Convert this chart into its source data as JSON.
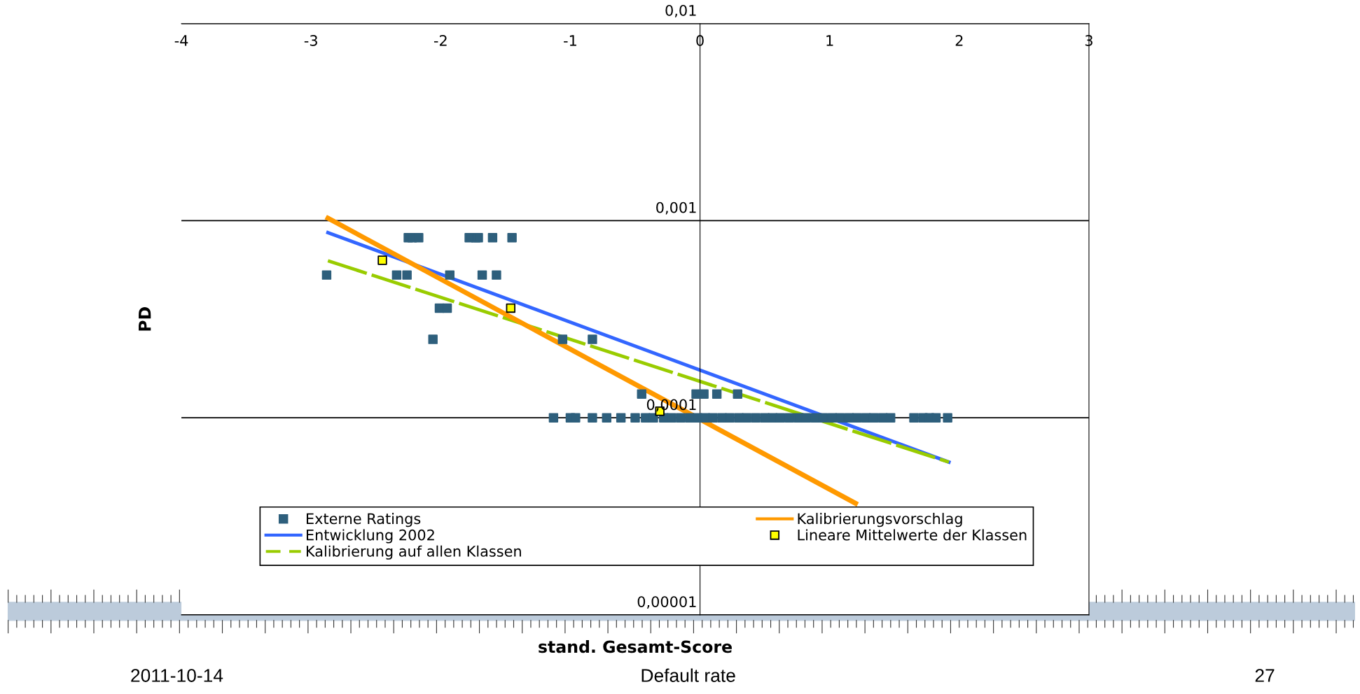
{
  "chart_data": {
    "type": "scatter",
    "xlabel": "stand. Gesamt-Score",
    "ylabel": "PD",
    "log": "y",
    "xlim": [
      -4,
      3
    ],
    "ylim": [
      1e-05,
      0.01
    ],
    "xticks": [
      -4,
      -3,
      -2,
      -1,
      0,
      1,
      2,
      3
    ],
    "yticks": [
      {
        "value": 1e-05,
        "label": "0,00001"
      },
      {
        "value": 0.0001,
        "label": "0,0001"
      },
      {
        "value": 0.001,
        "label": "0,001"
      },
      {
        "value": 0.01,
        "label": "0,01"
      }
    ],
    "grid": "y",
    "legend": "bottom",
    "series": [
      {
        "name": "Externe Ratings",
        "marker": "square",
        "color": "#2e5f7c",
        "x": [
          -2.25,
          -2.22,
          -2.17,
          -1.78,
          -1.73,
          -1.71,
          -1.6,
          -1.45,
          -2.88,
          -2.34,
          -2.26,
          -1.93,
          -1.68,
          -1.57,
          -2.01,
          -1.95,
          -2.06,
          -1.06,
          -0.83,
          -0.45,
          -0.03,
          0.03,
          0.13,
          0.29,
          -1.13,
          -1.0,
          -0.96,
          -0.83,
          -0.72,
          -0.61,
          -0.5,
          -0.42,
          -0.36,
          -0.28,
          -0.22,
          -0.15,
          -0.08,
          -0.02,
          0.04,
          0.1,
          0.17,
          0.23,
          0.3,
          0.36,
          0.43,
          0.5,
          0.56,
          0.62,
          0.69,
          0.76,
          0.82,
          0.89,
          0.95,
          1.02,
          1.08,
          1.15,
          1.21,
          1.28,
          1.34,
          1.41,
          1.47,
          1.65,
          1.72,
          1.77,
          1.82,
          1.91
        ],
        "values": [
          0.00082,
          0.00082,
          0.00082,
          0.00082,
          0.00082,
          0.00082,
          0.00082,
          0.00082,
          0.00053,
          0.00053,
          0.00053,
          0.00053,
          0.00053,
          0.00053,
          0.00036,
          0.00036,
          0.00025,
          0.00025,
          0.00025,
          0.000132,
          0.000132,
          0.000132,
          0.000132,
          0.000132,
          0.0001,
          0.0001,
          0.0001,
          0.0001,
          0.0001,
          0.0001,
          0.0001,
          0.0001,
          0.0001,
          0.0001,
          0.0001,
          0.0001,
          0.0001,
          0.0001,
          0.0001,
          0.0001,
          0.0001,
          0.0001,
          0.0001,
          0.0001,
          0.0001,
          0.0001,
          0.0001,
          0.0001,
          0.0001,
          0.0001,
          0.0001,
          0.0001,
          0.0001,
          0.0001,
          0.0001,
          0.0001,
          0.0001,
          0.0001,
          0.0001,
          0.0001,
          0.0001,
          0.0001,
          0.0001,
          0.0001,
          0.0001,
          0.0001
        ]
      },
      {
        "name": "Entwicklung 2002",
        "type": "line",
        "color": "#3366ff",
        "line_style": "solid",
        "x": [
          -2.87,
          1.92
        ],
        "values": [
          0.00087,
          5.96e-05
        ]
      },
      {
        "name": "Kalibrierung auf allen Klassen",
        "type": "line",
        "color": "#99cc00",
        "line_style": "dashed",
        "x": [
          -2.87,
          1.92
        ],
        "values": [
          0.000626,
          5.96e-05
        ]
      },
      {
        "name": "Kalibrierungsvorschlag",
        "type": "line",
        "color": "#ff9900",
        "line_style": "solid",
        "x": [
          -2.87,
          1.2
        ],
        "values": [
          0.00103,
          3.68e-05
        ]
      },
      {
        "name": "Lineare Mittelwerte der Klassen",
        "marker": "square",
        "color": "#ffff00",
        "x": [
          -2.45,
          -1.46,
          -0.31
        ],
        "values": [
          0.00063,
          0.00036,
          0.000108
        ]
      }
    ],
    "annotations": [
      "2011-10-14",
      "Default rate",
      "27"
    ]
  }
}
